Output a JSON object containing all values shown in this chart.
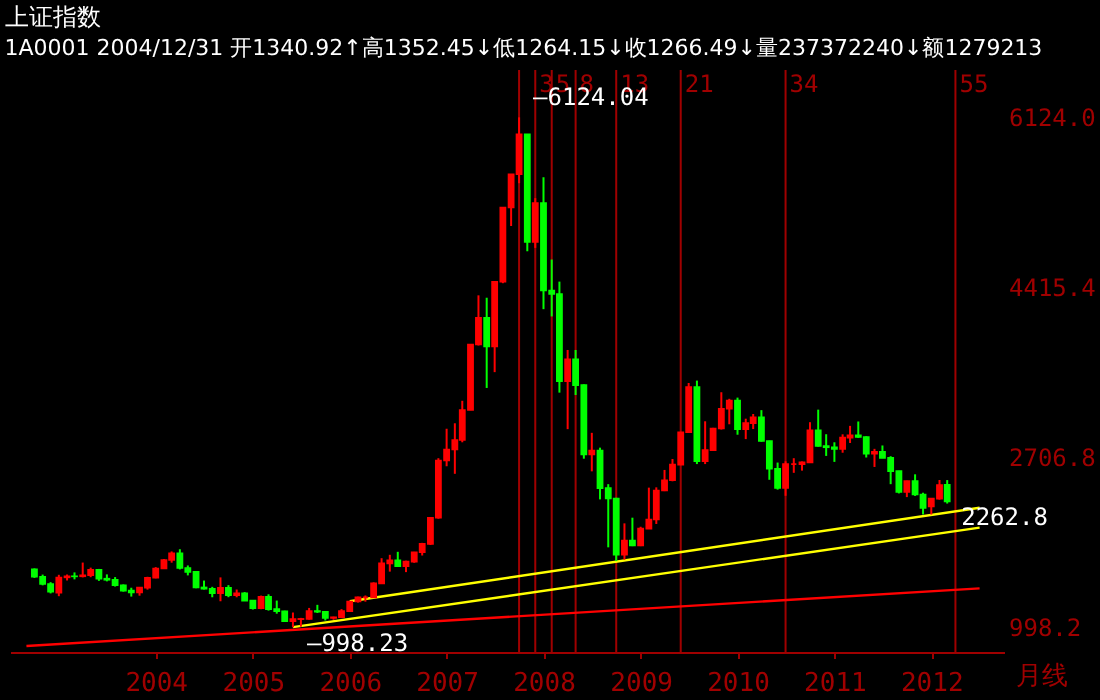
{
  "chart_data": {
    "type": "candlestick",
    "title": "上证指数",
    "subtitle": "1A0001 2004/12/31 开1340.92↑高1352.45↓低1264.15↓收1266.49↓量237372240↓额1279213",
    "x": [
      "2002-10",
      "2002-11",
      "2002-12",
      "2003-01",
      "2003-02",
      "2003-03",
      "2003-04",
      "2003-05",
      "2003-06",
      "2003-07",
      "2003-08",
      "2003-09",
      "2003-10",
      "2003-11",
      "2003-12",
      "2004-01",
      "2004-02",
      "2004-03",
      "2004-04",
      "2004-05",
      "2004-06",
      "2004-07",
      "2004-08",
      "2004-09",
      "2004-10",
      "2004-11",
      "2004-12",
      "2005-01",
      "2005-02",
      "2005-03",
      "2005-04",
      "2005-05",
      "2005-06",
      "2005-07",
      "2005-08",
      "2005-09",
      "2005-10",
      "2005-11",
      "2005-12",
      "2006-01",
      "2006-02",
      "2006-03",
      "2006-04",
      "2006-05",
      "2006-06",
      "2006-07",
      "2006-08",
      "2006-09",
      "2006-10",
      "2006-11",
      "2006-12",
      "2007-01",
      "2007-02",
      "2007-03",
      "2007-04",
      "2007-05",
      "2007-06",
      "2007-07",
      "2007-08",
      "2007-09",
      "2007-10",
      "2007-11",
      "2007-12",
      "2008-01",
      "2008-02",
      "2008-03",
      "2008-04",
      "2008-05",
      "2008-06",
      "2008-07",
      "2008-08",
      "2008-09",
      "2008-10",
      "2008-11",
      "2008-12",
      "2009-01",
      "2009-02",
      "2009-03",
      "2009-04",
      "2009-05",
      "2009-06",
      "2009-07",
      "2009-08",
      "2009-09",
      "2009-10",
      "2009-11",
      "2009-12",
      "2010-01",
      "2010-02",
      "2010-03",
      "2010-04",
      "2010-05",
      "2010-06",
      "2010-07",
      "2010-08",
      "2010-09",
      "2010-10",
      "2010-11",
      "2010-12",
      "2011-01",
      "2011-02",
      "2011-03",
      "2011-04",
      "2011-05",
      "2011-06",
      "2011-07",
      "2011-08",
      "2011-09",
      "2011-10",
      "2011-11",
      "2011-12",
      "2012-01",
      "2012-02",
      "2012-03"
    ],
    "ohlc": [
      [
        1581,
        1590,
        1495,
        1507
      ],
      [
        1507,
        1528,
        1420,
        1434
      ],
      [
        1434,
        1452,
        1339,
        1357
      ],
      [
        1347,
        1526,
        1311,
        1499
      ],
      [
        1500,
        1529,
        1469,
        1511
      ],
      [
        1511,
        1550,
        1480,
        1510
      ],
      [
        1511,
        1649,
        1500,
        1521
      ],
      [
        1521,
        1598,
        1502,
        1576
      ],
      [
        1576,
        1585,
        1465,
        1487
      ],
      [
        1487,
        1530,
        1460,
        1476
      ],
      [
        1476,
        1503,
        1408,
        1421
      ],
      [
        1421,
        1429,
        1357,
        1367
      ],
      [
        1367,
        1396,
        1307,
        1349
      ],
      [
        1349,
        1400,
        1316,
        1397
      ],
      [
        1397,
        1506,
        1377,
        1497
      ],
      [
        1497,
        1603,
        1491,
        1590
      ],
      [
        1590,
        1685,
        1585,
        1675
      ],
      [
        1675,
        1761,
        1648,
        1742
      ],
      [
        1742,
        1783,
        1580,
        1595
      ],
      [
        1595,
        1620,
        1520,
        1555
      ],
      [
        1555,
        1560,
        1391,
        1399
      ],
      [
        1399,
        1468,
        1378,
        1386
      ],
      [
        1386,
        1405,
        1300,
        1342
      ],
      [
        1342,
        1500,
        1260,
        1396
      ],
      [
        1396,
        1422,
        1301,
        1320
      ],
      [
        1320,
        1378,
        1300,
        1340
      ],
      [
        1340.92,
        1352.45,
        1264.15,
        1266.49
      ],
      [
        1266,
        1270,
        1177,
        1191
      ],
      [
        1191,
        1317,
        1180,
        1306
      ],
      [
        1306,
        1330,
        1166,
        1181
      ],
      [
        1181,
        1267,
        1135,
        1159
      ],
      [
        1159,
        1165,
        1054,
        1060
      ],
      [
        1060,
        1147,
        998.23,
        1080
      ],
      [
        1080,
        1093,
        1004,
        1083
      ],
      [
        1083,
        1193,
        1075,
        1162
      ],
      [
        1162,
        1224,
        1142,
        1155
      ],
      [
        1155,
        1157,
        1067,
        1092
      ],
      [
        1092,
        1105,
        1074,
        1099
      ],
      [
        1099,
        1181,
        1090,
        1161
      ],
      [
        1161,
        1260,
        1161,
        1258
      ],
      [
        1258,
        1306,
        1247,
        1299
      ],
      [
        1299,
        1318,
        1256,
        1299
      ],
      [
        1299,
        1450,
        1294,
        1440
      ],
      [
        1440,
        1693,
        1437,
        1641
      ],
      [
        1641,
        1727,
        1558,
        1672
      ],
      [
        1672,
        1757,
        1609,
        1612
      ],
      [
        1612,
        1668,
        1553,
        1658
      ],
      [
        1658,
        1756,
        1647,
        1752
      ],
      [
        1752,
        1847,
        1720,
        1837
      ],
      [
        1837,
        2102,
        1826,
        2099
      ],
      [
        2099,
        2698,
        2090,
        2675
      ],
      [
        2675,
        2994,
        2617,
        2786
      ],
      [
        2786,
        3049,
        2541,
        2881
      ],
      [
        2881,
        3275,
        2858,
        3183
      ],
      [
        3183,
        3841,
        3181,
        3841
      ],
      [
        3841,
        4335,
        3831,
        4109
      ],
      [
        4109,
        4311,
        3404,
        3820
      ],
      [
        3820,
        4471,
        3563,
        4471
      ],
      [
        4471,
        5218,
        4457,
        5218
      ],
      [
        5218,
        5552,
        5032,
        5552
      ],
      [
        5552,
        6124.04,
        5462,
        5954
      ],
      [
        5954,
        5956,
        4778,
        4871
      ],
      [
        4871,
        5312,
        4812,
        5262
      ],
      [
        5262,
        5522,
        4196,
        4383
      ],
      [
        4383,
        4695,
        4123,
        4348
      ],
      [
        4348,
        4473,
        3357,
        3473
      ],
      [
        3473,
        3786,
        2990,
        3693
      ],
      [
        3693,
        3786,
        3333,
        3433
      ],
      [
        3433,
        3440,
        2693,
        2736
      ],
      [
        2736,
        2953,
        2566,
        2775
      ],
      [
        2775,
        2804,
        2284,
        2397
      ],
      [
        2397,
        2437,
        1802,
        2293
      ],
      [
        2293,
        2300,
        1664,
        1729
      ],
      [
        1729,
        2043,
        1678,
        1871
      ],
      [
        1871,
        2100,
        1814,
        1821
      ],
      [
        1821,
        2009,
        1814,
        1990
      ],
      [
        1990,
        2402,
        1990,
        2082
      ],
      [
        2082,
        2405,
        2037,
        2373
      ],
      [
        2373,
        2580,
        2367,
        2477
      ],
      [
        2477,
        2690,
        2466,
        2633
      ],
      [
        2633,
        2959,
        2632,
        2959
      ],
      [
        2959,
        3454,
        2959,
        3412
      ],
      [
        3412,
        3478,
        2639,
        2668
      ],
      [
        2668,
        3069,
        2639,
        2779
      ],
      [
        2779,
        3003,
        2774,
        2996
      ],
      [
        2996,
        3361,
        2986,
        3195
      ],
      [
        3195,
        3295,
        3039,
        3277
      ],
      [
        3277,
        3307,
        2934,
        2989
      ],
      [
        2989,
        3095,
        2890,
        3051
      ],
      [
        3051,
        3142,
        2991,
        3110
      ],
      [
        3110,
        3181,
        2864,
        2871
      ],
      [
        2871,
        2874,
        2481,
        2592
      ],
      [
        2592,
        2654,
        2382,
        2398
      ],
      [
        2398,
        2667,
        2320,
        2638
      ],
      [
        2638,
        2698,
        2551,
        2638
      ],
      [
        2638,
        2665,
        2573,
        2656
      ],
      [
        2656,
        3060,
        2655,
        2979
      ],
      [
        2979,
        3186,
        2815,
        2820
      ],
      [
        2820,
        2939,
        2721,
        2808
      ],
      [
        2808,
        2858,
        2661,
        2791
      ],
      [
        2791,
        2938,
        2753,
        2905
      ],
      [
        2905,
        3023,
        2851,
        2928
      ],
      [
        2928,
        3067,
        2902,
        2911
      ],
      [
        2911,
        2918,
        2705,
        2743
      ],
      [
        2743,
        2792,
        2610,
        2762
      ],
      [
        2762,
        2826,
        2699,
        2701
      ],
      [
        2701,
        2718,
        2437,
        2568
      ],
      [
        2568,
        2571,
        2344,
        2359
      ],
      [
        2359,
        2472,
        2307,
        2468
      ],
      [
        2468,
        2536,
        2319,
        2333
      ],
      [
        2333,
        2351,
        2132,
        2199
      ],
      [
        2212,
        2296,
        2132,
        2292
      ],
      [
        2290,
        2479,
        2282,
        2428
      ],
      [
        2430,
        2478,
        2242,
        2262.8
      ]
    ],
    "colors": [
      "#00ff00",
      "#00ff00",
      "#00ff00",
      "#ff0000",
      "#ff0000",
      "#00ff00",
      "#ff0000",
      "#ff0000",
      "#00ff00",
      "#00ff00",
      "#00ff00",
      "#00ff00",
      "#00ff00",
      "#ff0000",
      "#ff0000",
      "#ff0000",
      "#ff0000",
      "#ff0000",
      "#00ff00",
      "#00ff00",
      "#00ff00",
      "#00ff00",
      "#00ff00",
      "#ff0000",
      "#00ff00",
      "#ff0000",
      "#00ff00",
      "#00ff00",
      "#ff0000",
      "#00ff00",
      "#00ff00",
      "#00ff00",
      "#ff0000",
      "#ff0000",
      "#ff0000",
      "#00ff00",
      "#00ff00",
      "#ff0000",
      "#ff0000",
      "#ff0000",
      "#ff0000",
      "#ff0000",
      "#ff0000",
      "#ff0000",
      "#ff0000",
      "#00ff00",
      "#ff0000",
      "#ff0000",
      "#ff0000",
      "#ff0000",
      "#ff0000",
      "#ff0000",
      "#ff0000",
      "#ff0000",
      "#ff0000",
      "#ff0000",
      "#00ff00",
      "#ff0000",
      "#ff0000",
      "#ff0000",
      "#ff0000",
      "#00ff00",
      "#ff0000",
      "#00ff00",
      "#00ff00",
      "#00ff00",
      "#ff0000",
      "#00ff00",
      "#00ff00",
      "#ff0000",
      "#00ff00",
      "#00ff00",
      "#00ff00",
      "#ff0000",
      "#00ff00",
      "#ff0000",
      "#ff0000",
      "#ff0000",
      "#ff0000",
      "#ff0000",
      "#ff0000",
      "#ff0000",
      "#00ff00",
      "#ff0000",
      "#ff0000",
      "#ff0000",
      "#ff0000",
      "#00ff00",
      "#ff0000",
      "#ff0000",
      "#00ff00",
      "#00ff00",
      "#00ff00",
      "#ff0000",
      "#ff0000",
      "#ff0000",
      "#ff0000",
      "#00ff00",
      "#00ff00",
      "#00ff00",
      "#ff0000",
      "#ff0000",
      "#00ff00",
      "#00ff00",
      "#ff0000",
      "#00ff00",
      "#00ff00",
      "#00ff00",
      "#ff0000",
      "#00ff00",
      "#00ff00",
      "#ff0000",
      "#ff0000",
      "#00ff00"
    ],
    "series": [
      {
        "type": "line",
        "x": [
          "2005-06",
          "2012-07"
        ],
        "values": [
          1000,
          2000
        ],
        "color": "#ffff00"
      },
      {
        "type": "line",
        "x": [
          "2006-01",
          "2012-07"
        ],
        "values": [
          1260,
          2200
        ],
        "color": "#ffff00"
      },
      {
        "type": "line",
        "x": [
          "2002-09",
          "2012-07"
        ],
        "values": [
          810,
          1390
        ],
        "color": "#ff0000"
      }
    ],
    "xlim": [
      "2002-07",
      "2012-10"
    ],
    "ylim": [
      750,
      6600
    ],
    "xticks": [
      {
        "value": "2004-01",
        "label": "2004"
      },
      {
        "value": "2005-01",
        "label": "2005"
      },
      {
        "value": "2006-01",
        "label": "2006"
      },
      {
        "value": "2007-01",
        "label": "2007"
      },
      {
        "value": "2008-01",
        "label": "2008"
      },
      {
        "value": "2009-01",
        "label": "2009"
      },
      {
        "value": "2010-01",
        "label": "2010"
      },
      {
        "value": "2011-01",
        "label": "2011"
      },
      {
        "value": "2012-01",
        "label": "2012"
      }
    ],
    "yticks": [
      998.2,
      2706.8,
      4415.4,
      {
        "value": 6124,
        "label": "6124.0"
      }
    ],
    "ref_lines": [
      {
        "axis": "x",
        "value": "2007-10",
        "label": null,
        "color": "#a00000"
      },
      {
        "axis": "x",
        "value": "2007-12",
        "label": "3",
        "color": "#a00000"
      },
      {
        "axis": "x",
        "value": "2008-02",
        "label": "5",
        "color": "#a00000"
      },
      {
        "axis": "x",
        "value": "2008-05",
        "label": "8",
        "color": "#a00000"
      },
      {
        "axis": "x",
        "value": "2008-10",
        "label": "13",
        "color": "#a00000"
      },
      {
        "axis": "x",
        "value": "2009-06",
        "label": "21",
        "color": "#a00000"
      },
      {
        "axis": "x",
        "value": "2010-07",
        "label": "34",
        "color": "#a00000"
      },
      {
        "axis": "x",
        "value": "2012-04",
        "label": "55",
        "color": "#a00000"
      }
    ],
    "annotations": [
      {
        "text": "—6124.04",
        "x": "2007-10",
        "y": 6124.04
      },
      {
        "text": "—998.23",
        "x": "2005-06",
        "y": 998.23
      },
      {
        "text": "2262.8",
        "x": "2012-03",
        "y": 2262.8
      },
      "月线"
    ],
    "grid": false
  }
}
